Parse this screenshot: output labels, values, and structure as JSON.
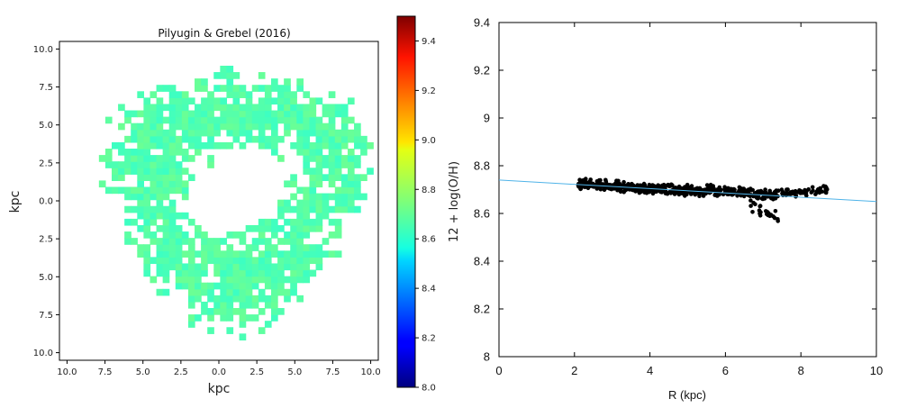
{
  "chart_data": [
    {
      "type": "heatmap",
      "title": "Pilyugin & Grebel (2016)",
      "xlabel": "kpc",
      "ylabel": "kpc",
      "xlim": [
        -10.5,
        10.5
      ],
      "ylim": [
        -10.5,
        10.5
      ],
      "xtick_labels": [
        "10.0",
        "7.5",
        "5.0",
        "2.5",
        "0.0",
        "2.5",
        "5.0",
        "7.5",
        "10.0"
      ],
      "ytick_labels": [
        "10.0",
        "7.5",
        "5.0",
        "2.5",
        "0.0",
        "2.5",
        "5.0",
        "7.5",
        "10.0"
      ],
      "map": {
        "shape": "ring",
        "inner_radius_kpc": 3.0,
        "outer_radius_kpc": 8.5,
        "center_kpc": [
          1.0,
          0.5
        ],
        "value_range": [
          8.65,
          8.72
        ],
        "fill_fraction": 0.88
      },
      "colorbar": {
        "label": "12 + log(O/H)",
        "min": 8.0,
        "max": 9.5,
        "colormap": "jet",
        "tick_labels": [
          "8.0",
          "8.2",
          "8.4",
          "8.6",
          "8.8",
          "9.0",
          "9.2",
          "9.4"
        ]
      }
    },
    {
      "type": "scatter",
      "title": "",
      "xlabel": "R (kpc)",
      "ylabel": "",
      "xlim": [
        0,
        10
      ],
      "ylim": [
        8,
        9.4
      ],
      "xtick_labels": [
        "0",
        "2",
        "4",
        "6",
        "8",
        "10"
      ],
      "ytick_labels": [
        "8",
        "8.2",
        "8.4",
        "8.6",
        "8.8",
        "9",
        "9.2",
        "9.4"
      ],
      "marker_color": "#000000",
      "fit_line": {
        "color": "#4fb3e8",
        "x": [
          0,
          10
        ],
        "y": [
          8.74,
          8.65
        ]
      },
      "scatter_groups": [
        {
          "x_range": [
            2.1,
            5.5
          ],
          "y_center_at_start": 8.725,
          "y_center_at_end": 8.69,
          "y_spread": 0.025,
          "count": 380
        },
        {
          "x_range": [
            5.5,
            7.3
          ],
          "y_center_at_start": 8.7,
          "y_center_at_end": 8.675,
          "y_spread": 0.025,
          "count": 150
        },
        {
          "x_range": [
            6.6,
            7.4
          ],
          "y_center_at_start": 8.64,
          "y_center_at_end": 8.58,
          "y_spread": 0.03,
          "count": 25
        },
        {
          "x_range": [
            7.3,
            8.7
          ],
          "y_center_at_start": 8.68,
          "y_center_at_end": 8.7,
          "y_spread": 0.02,
          "count": 70
        }
      ]
    }
  ]
}
